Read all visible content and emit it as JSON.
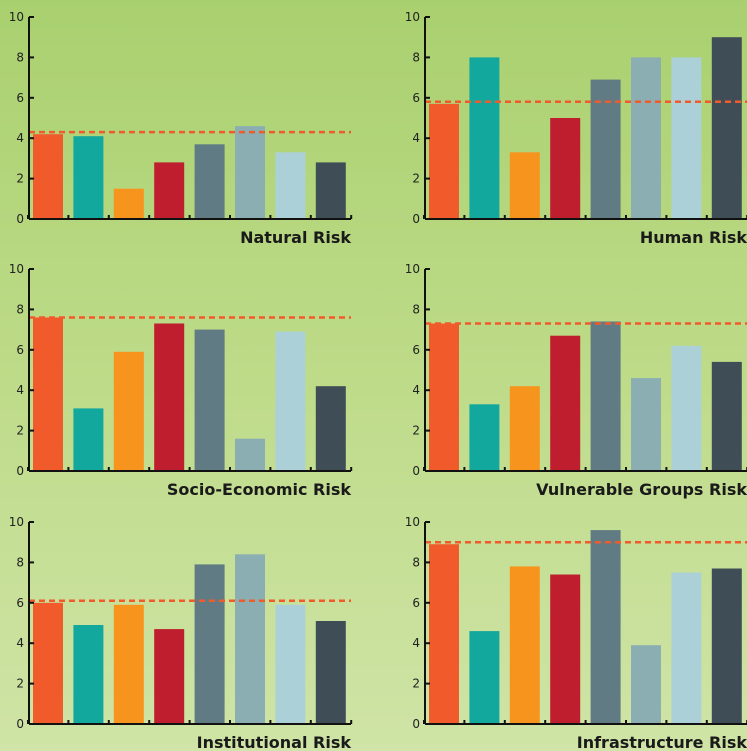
{
  "bar_colors": [
    "#f15a2b",
    "#13a89e",
    "#f7941d",
    "#be1e2d",
    "#607b83",
    "#8aaeb2",
    "#acd0d8",
    "#3f4e56"
  ],
  "reference_line_color": "#f15a2b",
  "chart_data": [
    {
      "type": "bar",
      "title": "Natural Risk",
      "ylim": [
        0,
        10
      ],
      "yticks": [
        0,
        2,
        4,
        6,
        8,
        10
      ],
      "values": [
        4.2,
        4.1,
        1.5,
        2.8,
        3.7,
        4.6,
        3.3,
        2.8
      ],
      "reference_line": 4.3
    },
    {
      "type": "bar",
      "title": "Human Risk",
      "ylim": [
        0,
        10
      ],
      "yticks": [
        0,
        2,
        4,
        6,
        8,
        10
      ],
      "values": [
        5.7,
        8.0,
        3.3,
        5.0,
        6.9,
        8.0,
        8.0,
        9.0
      ],
      "reference_line": 5.8
    },
    {
      "type": "bar",
      "title": "Socio-Economic Risk",
      "ylim": [
        0,
        10
      ],
      "yticks": [
        0,
        2,
        4,
        6,
        8,
        10
      ],
      "values": [
        7.6,
        3.1,
        5.9,
        7.3,
        7.0,
        1.6,
        6.9,
        4.2
      ],
      "reference_line": 7.6
    },
    {
      "type": "bar",
      "title": "Vulnerable Groups Risk",
      "ylim": [
        0,
        10
      ],
      "yticks": [
        0,
        2,
        4,
        6,
        8,
        10
      ],
      "values": [
        7.3,
        3.3,
        4.2,
        6.7,
        7.4,
        4.6,
        6.2,
        5.4
      ],
      "reference_line": 7.3
    },
    {
      "type": "bar",
      "title": "Institutional Risk",
      "ylim": [
        0,
        10
      ],
      "yticks": [
        0,
        2,
        4,
        6,
        8,
        10
      ],
      "values": [
        6.0,
        4.9,
        5.9,
        4.7,
        7.9,
        8.4,
        5.9,
        5.1
      ],
      "reference_line": 6.1
    },
    {
      "type": "bar",
      "title": "Infrastructure Risk",
      "ylim": [
        0,
        10
      ],
      "yticks": [
        0,
        2,
        4,
        6,
        8,
        10
      ],
      "values": [
        8.9,
        4.6,
        7.8,
        7.4,
        9.6,
        3.9,
        7.5,
        7.7
      ],
      "reference_line": 9.0
    }
  ]
}
